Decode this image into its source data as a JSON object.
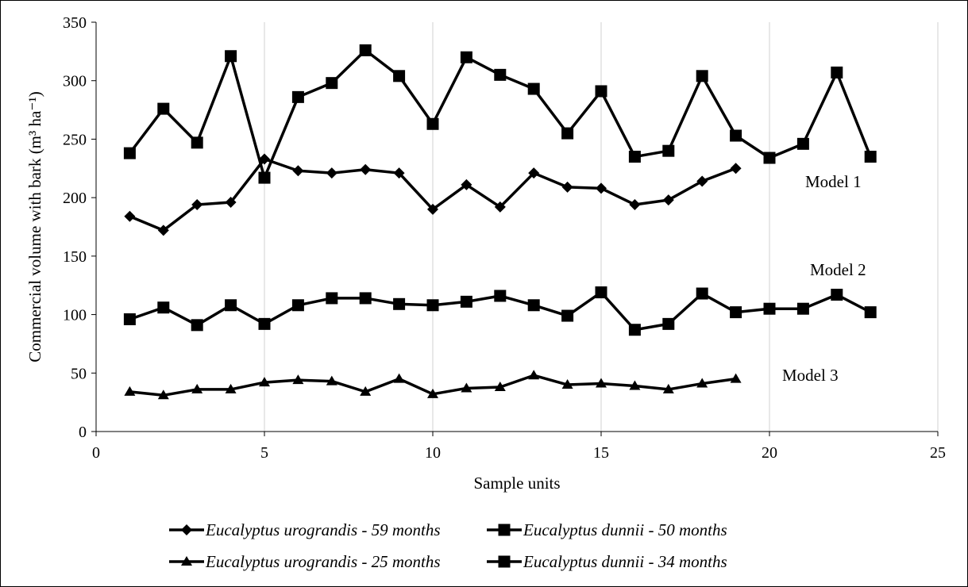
{
  "chart_data": {
    "type": "line",
    "title": "",
    "xlabel": "Sample units",
    "ylabel": "Commercial volume with bark (m³ ha⁻¹)",
    "xlim": [
      0,
      25
    ],
    "ylim": [
      0,
      350
    ],
    "xticks": [
      0,
      5,
      10,
      15,
      20,
      25
    ],
    "yticks": [
      0,
      50,
      100,
      150,
      200,
      250,
      300,
      350
    ],
    "grid": "vertical",
    "legend_placement": "bottom",
    "annotations": [
      "Model 1",
      "Model 2",
      "Model 3"
    ],
    "series": [
      {
        "name": "Eucalyptus urograndis - 59 months",
        "marker": "diamond",
        "x": [
          1,
          2,
          3,
          4,
          5,
          6,
          7,
          8,
          9,
          10,
          11,
          12,
          13,
          14,
          15,
          16,
          17,
          18,
          19
        ],
        "values": [
          184,
          172,
          194,
          196,
          233,
          223,
          221,
          224,
          221,
          190,
          211,
          192,
          221,
          209,
          208,
          194,
          198,
          214,
          225
        ]
      },
      {
        "name": "Eucalyptus dunnii - 50 months",
        "marker": "square",
        "x": [
          1,
          2,
          3,
          4,
          5,
          6,
          7,
          8,
          9,
          10,
          11,
          12,
          13,
          14,
          15,
          16,
          17,
          18,
          19,
          20,
          21,
          22,
          23
        ],
        "values": [
          238,
          276,
          247,
          321,
          217,
          286,
          298,
          326,
          304,
          263,
          320,
          305,
          293,
          255,
          291,
          235,
          240,
          304,
          253,
          234,
          246,
          307,
          235
        ]
      },
      {
        "name": "Eucalyptus urograndis - 25 months",
        "marker": "triangle",
        "x": [
          1,
          2,
          3,
          4,
          5,
          6,
          7,
          8,
          9,
          10,
          11,
          12,
          13,
          14,
          15,
          16,
          17,
          18,
          19
        ],
        "values": [
          34,
          31,
          36,
          36,
          42,
          44,
          43,
          34,
          45,
          32,
          37,
          38,
          48,
          40,
          41,
          39,
          36,
          41,
          45
        ]
      },
      {
        "name": "Eucalyptus dunnii - 34 months",
        "marker": "square",
        "x": [
          1,
          2,
          3,
          4,
          5,
          6,
          7,
          8,
          9,
          10,
          11,
          12,
          13,
          14,
          15,
          16,
          17,
          18,
          19,
          20,
          21,
          22,
          23
        ],
        "values": [
          96,
          106,
          91,
          108,
          92,
          108,
          114,
          114,
          109,
          108,
          111,
          116,
          108,
          99,
          119,
          87,
          92,
          118,
          102,
          105,
          105,
          117,
          102
        ]
      }
    ]
  }
}
